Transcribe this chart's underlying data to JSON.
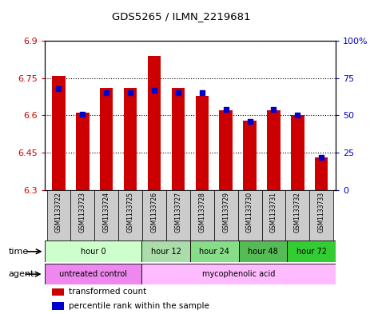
{
  "title": "GDS5265 / ILMN_2219681",
  "samples": [
    "GSM1133722",
    "GSM1133723",
    "GSM1133724",
    "GSM1133725",
    "GSM1133726",
    "GSM1133727",
    "GSM1133728",
    "GSM1133729",
    "GSM1133730",
    "GSM1133731",
    "GSM1133732",
    "GSM1133733"
  ],
  "transformed_count": [
    6.76,
    6.61,
    6.71,
    6.71,
    6.84,
    6.71,
    6.68,
    6.62,
    6.58,
    6.62,
    6.6,
    6.43
  ],
  "percentile_rank": [
    68,
    51,
    65,
    65,
    67,
    65,
    65,
    54,
    46,
    54,
    50,
    22
  ],
  "ymin": 6.3,
  "ymax": 6.9,
  "yticks": [
    6.3,
    6.45,
    6.6,
    6.75,
    6.9
  ],
  "ytick_labels": [
    "6.3",
    "6.45",
    "6.6",
    "6.75",
    "6.9"
  ],
  "y2min": 0,
  "y2max": 100,
  "y2ticks": [
    0,
    25,
    50,
    75,
    100
  ],
  "y2tick_labels": [
    "0",
    "25",
    "50",
    "75",
    "100%"
  ],
  "bar_color": "#cc0000",
  "dot_color": "#0000cc",
  "bar_width": 0.55,
  "baseline": 6.3,
  "time_groups": [
    {
      "label": "hour 0",
      "start": 0,
      "end": 4,
      "color": "#ccffcc"
    },
    {
      "label": "hour 12",
      "start": 4,
      "end": 6,
      "color": "#aaddaa"
    },
    {
      "label": "hour 24",
      "start": 6,
      "end": 8,
      "color": "#88dd88"
    },
    {
      "label": "hour 48",
      "start": 8,
      "end": 10,
      "color": "#55bb55"
    },
    {
      "label": "hour 72",
      "start": 10,
      "end": 12,
      "color": "#33cc33"
    }
  ],
  "agent_groups": [
    {
      "label": "untreated control",
      "start": 0,
      "end": 4,
      "color": "#ee88ee"
    },
    {
      "label": "mycophenolic acid",
      "start": 4,
      "end": 12,
      "color": "#ffbbff"
    }
  ],
  "sample_bg": "#cccccc",
  "xlabel_color": "#cc0000",
  "y2label_color": "#0000cc"
}
